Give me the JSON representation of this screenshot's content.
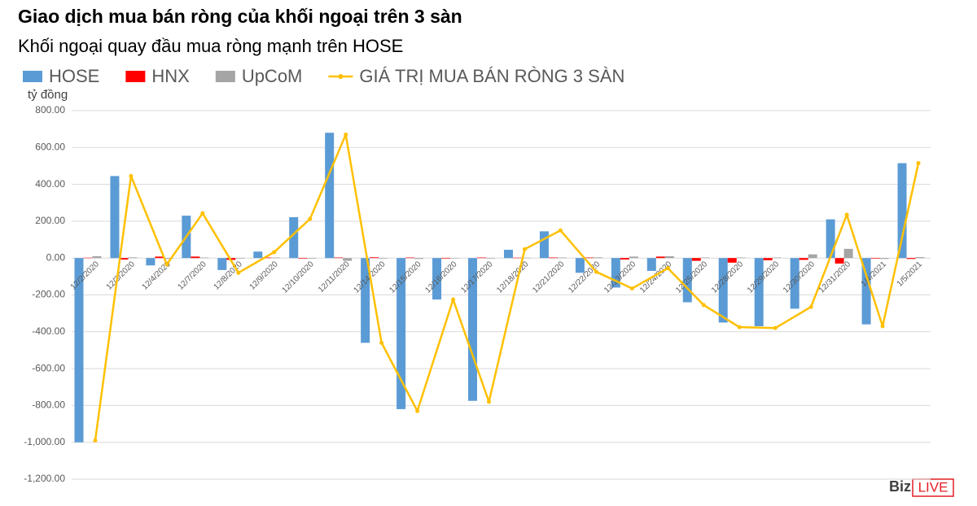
{
  "chart_data": {
    "type": "bar",
    "title": "Giao dịch mua bán ròng của khối ngoại trên 3 sàn",
    "subtitle": "Khối ngoại quay đầu mua ròng mạnh trên HOSE",
    "y_label": "tỷ đồng",
    "logo": [
      "Biz",
      "LIVE"
    ],
    "categories": [
      "12/2/2020",
      "12/3/2020",
      "12/4/2020",
      "12/7/2020",
      "12/8/2020",
      "12/9/2020",
      "12/10/2020",
      "12/11/2020",
      "12/14/2020",
      "12/15/2020",
      "12/16/2020",
      "12/17/2020",
      "12/18/2020",
      "12/21/2020",
      "12/22/2020",
      "12/23/2020",
      "12/24/2020",
      "12/25/2020",
      "12/28/2020",
      "12/29/2020",
      "12/30/2020",
      "12/31/2020",
      "1/4/2021",
      "1/5/2021"
    ],
    "series": [
      {
        "name": "HOSE",
        "type": "bar",
        "color": "#5b9bd5",
        "values": [
          -1000,
          445,
          -40,
          230,
          -65,
          35,
          222,
          680,
          -460,
          -820,
          -225,
          -775,
          45,
          145,
          -80,
          -160,
          -70,
          -240,
          -350,
          -370,
          -275,
          210,
          -360,
          515
        ]
      },
      {
        "name": "HNX",
        "type": "bar",
        "color": "#ff0000",
        "values": [
          2,
          -8,
          8,
          8,
          -10,
          3,
          -3,
          3,
          4,
          3,
          -3,
          3,
          2,
          3,
          3,
          -8,
          8,
          -15,
          -25,
          -12,
          -10,
          -30,
          -3,
          -5
        ]
      },
      {
        "name": "UpCoM",
        "type": "bar",
        "color": "#a5a5a5",
        "values": [
          10,
          4,
          -5,
          3,
          -3,
          3,
          -3,
          -15,
          -3,
          -5,
          -2,
          -3,
          2,
          3,
          4,
          8,
          10,
          3,
          3,
          3,
          20,
          50,
          -5,
          5
        ]
      },
      {
        "name": "GIÁ TRỊ MUA BÁN RÒNG 3 SÀN",
        "type": "line",
        "color": "#ffc000",
        "values": [
          -990,
          445,
          -35,
          243,
          -80,
          32,
          212,
          670,
          -460,
          -830,
          -225,
          -780,
          48,
          150,
          -75,
          -165,
          -55,
          -255,
          -375,
          -380,
          -265,
          235,
          -370,
          515
        ]
      }
    ],
    "ylim": [
      -1200,
      800
    ],
    "yticks": [
      {
        "value": -1200,
        "label": "-1,200.00"
      },
      {
        "value": -1000,
        "label": "-1,000.00"
      },
      {
        "value": -800,
        "label": "-800.00"
      },
      {
        "value": -600,
        "label": "-600.00"
      },
      {
        "value": -400,
        "label": "-400.00"
      },
      {
        "value": -200,
        "label": "-200.00"
      },
      {
        "value": 0,
        "label": "0.00"
      },
      {
        "value": 200,
        "label": "200.00"
      },
      {
        "value": 400,
        "label": "400.00"
      },
      {
        "value": 600,
        "label": "600.00"
      },
      {
        "value": 800,
        "label": "800.00"
      }
    ],
    "grid": true
  }
}
